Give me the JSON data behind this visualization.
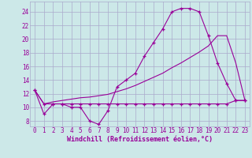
{
  "xlabel": "Windchill (Refroidissement éolien,°C)",
  "bg_color": "#cce8e8",
  "grid_color": "#aaaacc",
  "line_color": "#990099",
  "x_ticks": [
    0,
    1,
    2,
    3,
    4,
    5,
    6,
    7,
    8,
    9,
    10,
    11,
    12,
    13,
    14,
    15,
    16,
    17,
    18,
    19,
    20,
    21,
    22,
    23
  ],
  "y_ticks": [
    8,
    10,
    12,
    14,
    16,
    18,
    20,
    22,
    24
  ],
  "xlim": [
    -0.5,
    23.5
  ],
  "ylim": [
    7.2,
    25.5
  ],
  "line1_x": [
    0,
    1,
    2,
    3,
    4,
    5,
    6,
    7,
    8,
    9,
    10,
    11,
    12,
    13,
    14,
    15,
    16,
    17,
    18,
    19,
    20,
    21,
    22,
    23
  ],
  "line1_y": [
    12.5,
    9.0,
    10.5,
    10.5,
    10.0,
    10.0,
    8.0,
    7.5,
    9.5,
    13.0,
    14.0,
    15.0,
    17.5,
    19.5,
    21.5,
    24.0,
    24.5,
    24.5,
    24.0,
    20.5,
    16.5,
    13.5,
    11.0,
    11.0
  ],
  "line2_x": [
    0,
    1,
    2,
    3,
    4,
    5,
    6,
    7,
    8,
    9,
    10,
    11,
    12,
    13,
    14,
    15,
    16,
    17,
    18,
    19,
    20,
    21,
    22,
    23
  ],
  "line2_y": [
    12.5,
    10.5,
    10.5,
    10.5,
    10.5,
    10.5,
    10.5,
    10.5,
    10.5,
    10.5,
    10.5,
    10.5,
    10.5,
    10.5,
    10.5,
    10.5,
    10.5,
    10.5,
    10.5,
    10.5,
    10.5,
    10.5,
    11.0,
    11.0
  ],
  "line3_x": [
    0,
    1,
    2,
    3,
    4,
    5,
    6,
    7,
    8,
    9,
    10,
    11,
    12,
    13,
    14,
    15,
    16,
    17,
    18,
    19,
    20,
    21,
    22,
    23
  ],
  "line3_y": [
    12.5,
    10.5,
    10.8,
    11.0,
    11.2,
    11.4,
    11.5,
    11.7,
    11.9,
    12.3,
    12.7,
    13.2,
    13.8,
    14.4,
    15.0,
    15.8,
    16.5,
    17.3,
    18.1,
    19.0,
    20.5,
    20.5,
    16.5,
    11.0
  ]
}
